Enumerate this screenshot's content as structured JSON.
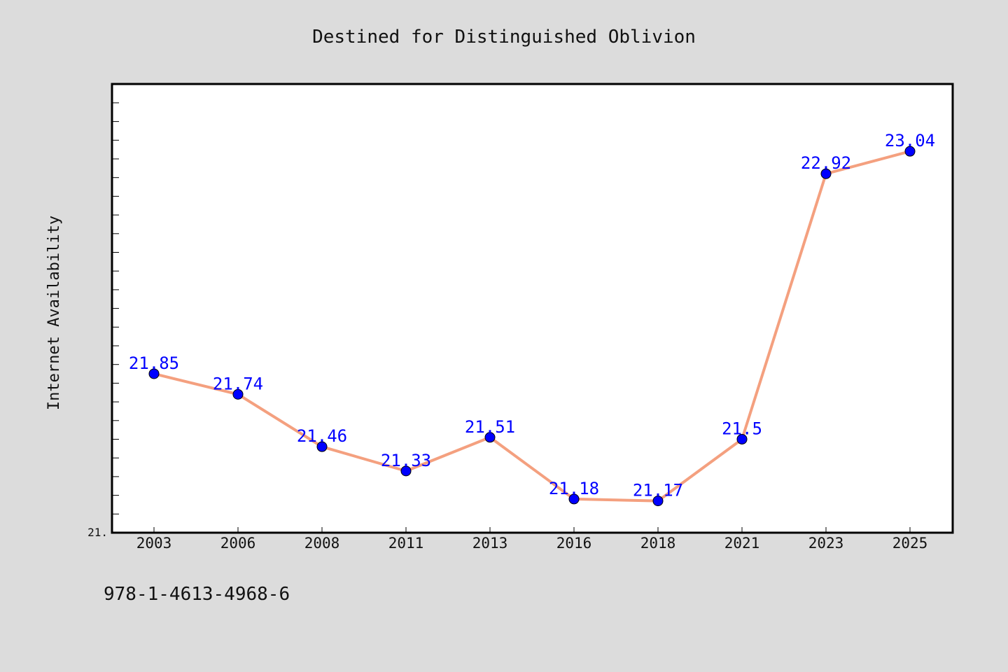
{
  "chart_data": {
    "type": "line",
    "title": "Destined for Distinguished Oblivion",
    "xlabel": "",
    "ylabel": "Internet Availability",
    "categories": [
      "2003",
      "2006",
      "2008",
      "2011",
      "2013",
      "2016",
      "2018",
      "2021",
      "2023",
      "2025"
    ],
    "series": [
      {
        "values": [
          21.85,
          21.74,
          21.46,
          21.33,
          21.51,
          21.18,
          21.17,
          21.5,
          22.92,
          23.04
        ]
      }
    ],
    "data_labels": [
      "21.85",
      "21.74",
      "21.46",
      "21.33",
      "21.51",
      "21.18",
      "21.17",
      "21.5",
      "22.92",
      "23.04"
    ],
    "y_tick_label": "21.",
    "ylim": [
      21.0,
      23.4
    ],
    "grid": false,
    "legend": "none",
    "colors": {
      "line": "#f4a07f",
      "marker": "#0000ff",
      "data_label": "#0000ff",
      "plot_background": "#ffffff",
      "figure_background": "#dcdcdc"
    }
  },
  "caption": "978-1-4613-4968-6"
}
